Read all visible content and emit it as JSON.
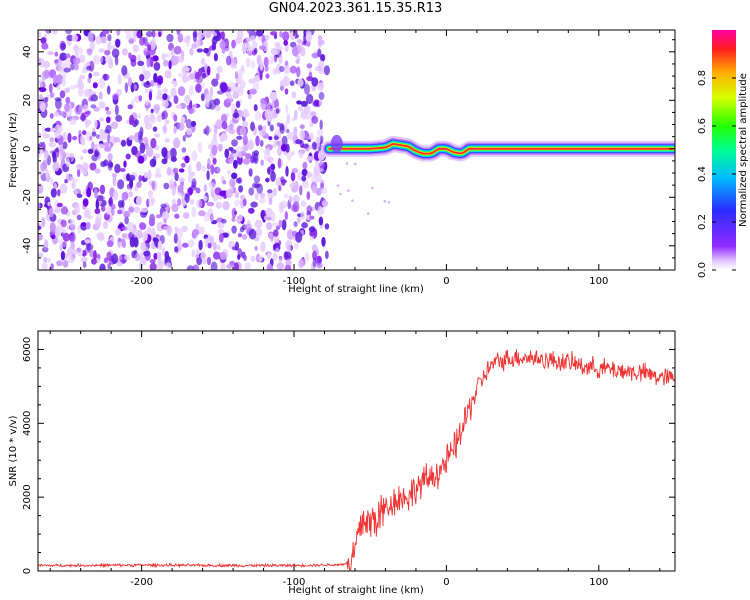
{
  "title": "GN04.2023.361.15.35.R13",
  "chart_data": [
    {
      "type": "heatmap",
      "xlabel": "Height of straight line (km)",
      "ylabel": "Frequency (Hz)",
      "xlim": [
        -268,
        150
      ],
      "ylim": [
        -50,
        49
      ],
      "x_ticks": [
        -200,
        -100,
        0,
        100
      ],
      "y_ticks": [
        -40,
        -20,
        0,
        20,
        40
      ],
      "colorbar": {
        "label": "Normalized spectral amplitude",
        "range": [
          0,
          1
        ],
        "ticks": [
          "0.0",
          "0.2",
          "0.4",
          "0.6",
          "0.8"
        ],
        "colormap": "rainbow (white→violet→blue→cyan→green→yellow→red→magenta)"
      },
      "noise_region_x": [
        -268,
        -77
      ],
      "signal_line": {
        "x": [
          -77,
          -60,
          -50,
          -40,
          -35,
          -30,
          -25,
          -20,
          -15,
          -10,
          -5,
          0,
          5,
          10,
          15,
          20,
          40,
          60,
          80,
          100,
          120,
          140,
          150
        ],
        "freq_hz": [
          0,
          0,
          0,
          0.5,
          2,
          1.5,
          1,
          -1,
          -2,
          -2,
          0,
          0,
          -1.5,
          -2,
          0,
          0,
          0,
          0,
          0,
          0,
          0,
          0,
          0
        ]
      },
      "grid": false
    },
    {
      "type": "line",
      "xlabel": "Height of straight line (km)",
      "ylabel": "SNR (10 * v/v)",
      "xlim": [
        -268,
        150
      ],
      "ylim": [
        0,
        6500
      ],
      "x_ticks": [
        -200,
        -100,
        0,
        100
      ],
      "y_ticks": [
        0,
        2000,
        4000,
        6000
      ],
      "color": "#ee3333",
      "series": [
        {
          "x": [
            -268,
            -250,
            -200,
            -150,
            -100,
            -70,
            -62,
            -58,
            -55,
            -50,
            -45,
            -40,
            -35,
            -30,
            -25,
            -20,
            -15,
            -10,
            -5,
            0,
            5,
            10,
            15,
            20,
            25,
            30,
            40,
            50,
            60,
            70,
            80,
            90,
            100,
            110,
            120,
            130,
            140,
            150
          ],
          "y": [
            150,
            150,
            160,
            150,
            150,
            170,
            250,
            900,
            1400,
            1300,
            1450,
            1700,
            1900,
            2000,
            2000,
            2250,
            2400,
            2550,
            2700,
            2950,
            3300,
            3800,
            4400,
            4950,
            5300,
            5600,
            5750,
            5800,
            5750,
            5700,
            5650,
            5550,
            5500,
            5450,
            5400,
            5350,
            5250,
            5200
          ]
        }
      ],
      "grid": false
    }
  ]
}
